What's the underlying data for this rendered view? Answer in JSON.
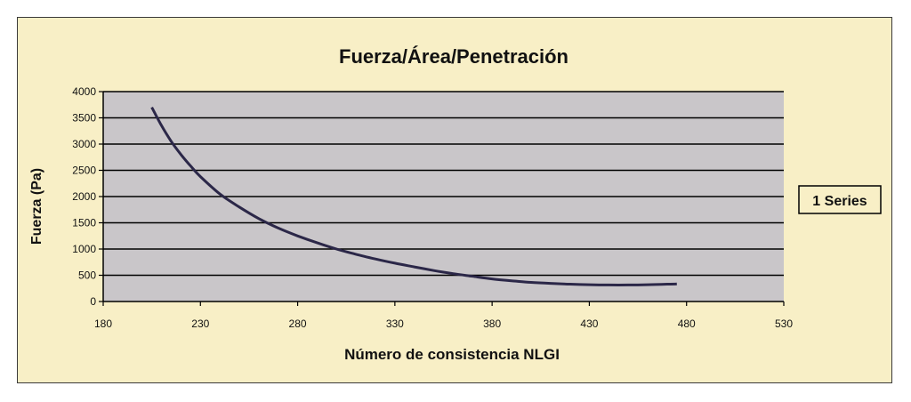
{
  "chart_data": {
    "type": "line",
    "title": "Fuerza/Área/Penetración",
    "xlabel": "Número de consistencia NLGI",
    "ylabel": "Fuerza (Pa)",
    "xlim": [
      180,
      530
    ],
    "ylim": [
      0,
      4000
    ],
    "x_ticks": [
      180,
      230,
      280,
      330,
      380,
      430,
      480,
      530
    ],
    "y_ticks": [
      0,
      500,
      1000,
      1500,
      2000,
      2500,
      3000,
      3500,
      4000
    ],
    "grid": true,
    "legend_position": "right",
    "series": [
      {
        "name": "1 Series",
        "x": [
          205,
          210,
          215,
          220,
          225,
          230,
          240,
          250,
          260,
          270,
          280,
          290,
          300,
          310,
          320,
          330,
          340,
          350,
          360,
          370,
          380,
          390,
          400,
          410,
          420,
          430,
          440,
          450,
          460,
          470,
          475
        ],
        "y": [
          3700,
          3350,
          3050,
          2800,
          2580,
          2380,
          2050,
          1800,
          1580,
          1400,
          1250,
          1120,
          1000,
          900,
          810,
          730,
          660,
          590,
          530,
          480,
          430,
          395,
          365,
          345,
          330,
          320,
          315,
          315,
          320,
          330,
          335
        ]
      }
    ]
  },
  "colors": {
    "background": "#f8efc6",
    "plot_area": "#c9c6c9",
    "gridline": "#000000",
    "series_line": "#2b2748"
  }
}
